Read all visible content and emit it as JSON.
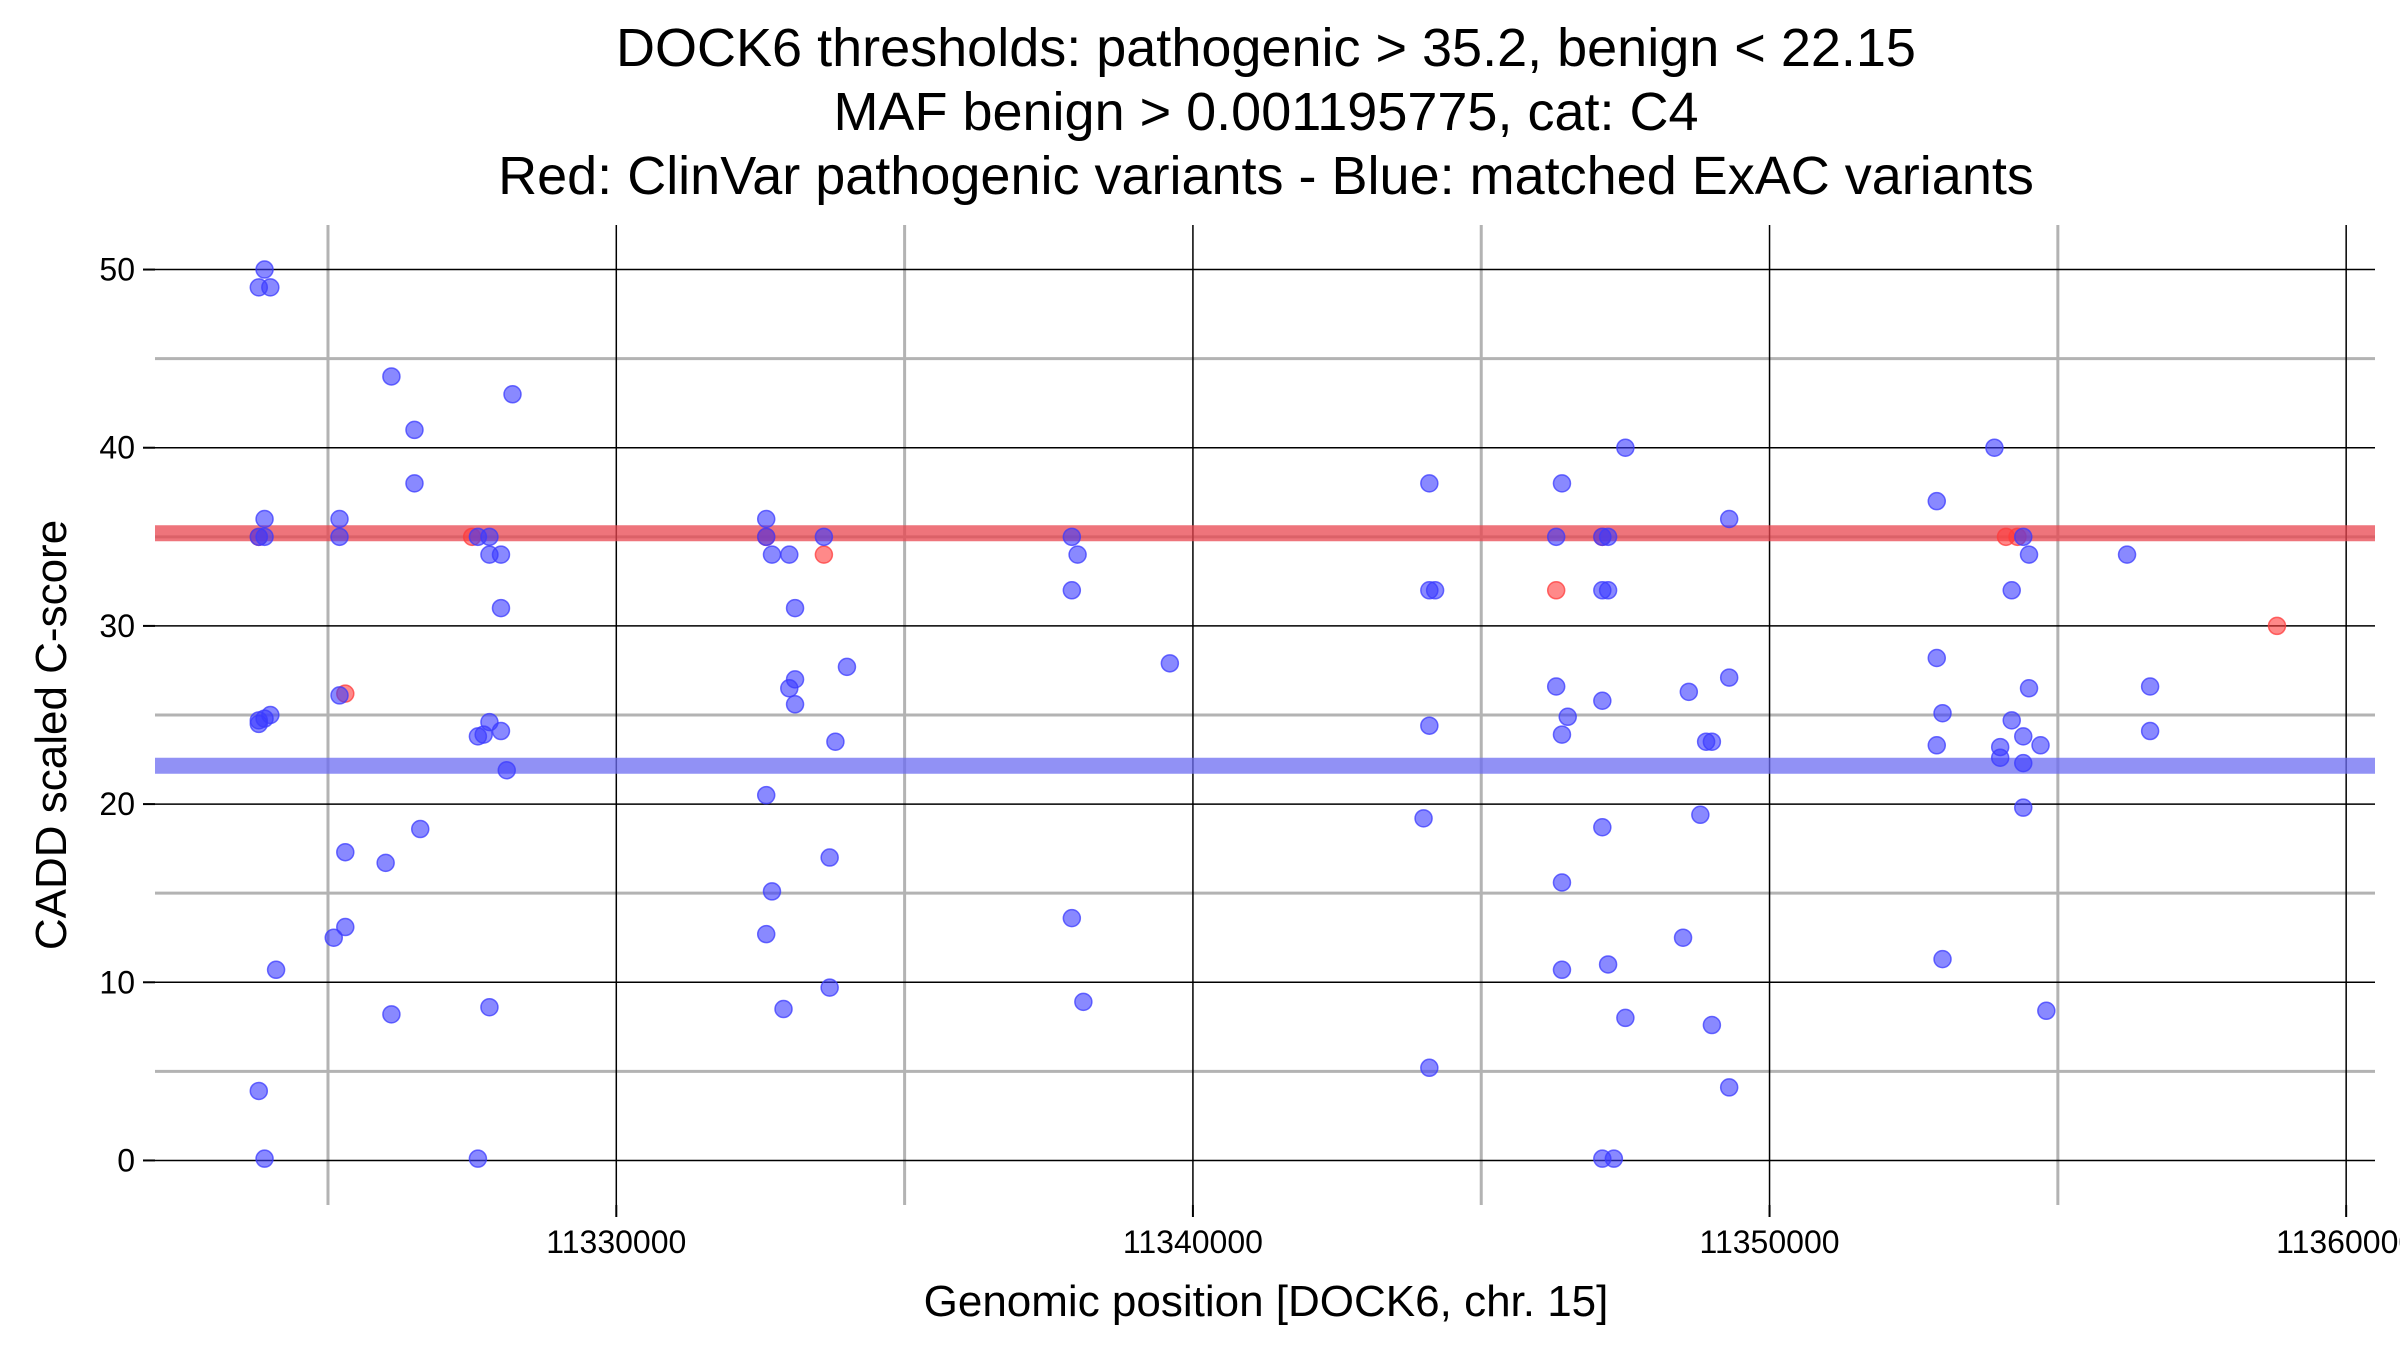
{
  "chart_data": {
    "type": "scatter",
    "title_lines": [
      "DOCK6 thresholds: pathogenic > 35.2, benign < 22.15",
      "MAF benign > 0.001195775, cat: C4",
      "Red: ClinVar pathogenic variants - Blue: matched ExAC variants"
    ],
    "xlabel": "Genomic position [DOCK6, chr. 15]",
    "ylabel": "CADD scaled C-score",
    "xlim": [
      11322000,
      11360500
    ],
    "ylim": [
      -2.5,
      52.5
    ],
    "x_ticks": [
      11330000,
      11340000,
      11350000,
      11360000
    ],
    "x_tick_labels": [
      "11330000",
      "11340000",
      "11350000",
      "11360000"
    ],
    "x_minor_grid": [
      11325000,
      11335000,
      11345000,
      11355000
    ],
    "y_ticks": [
      0,
      10,
      20,
      30,
      40,
      50
    ],
    "y_tick_labels": [
      "0",
      "10",
      "20",
      "30",
      "40",
      "50"
    ],
    "y_minor_grid": [
      5,
      15,
      25,
      35,
      45
    ],
    "grid": true,
    "threshold_lines": [
      {
        "name": "pathogenic",
        "value": 35.2,
        "color": "#e8454f"
      },
      {
        "name": "benign",
        "value": 22.15,
        "color": "#6c6cf2"
      }
    ],
    "colors": {
      "pathogenic": "#ff3b3b",
      "benign": "#3b3bff"
    },
    "series": [
      {
        "key": "clinvar",
        "color": "#ff3b3b",
        "points": [
          [
            11323800,
            35.0
          ],
          [
            11325300,
            26.2
          ],
          [
            11327500,
            35.0
          ],
          [
            11332600,
            35.0
          ],
          [
            11333600,
            34.0
          ],
          [
            11346300,
            32.0
          ],
          [
            11347100,
            35.0
          ],
          [
            11354100,
            35.0
          ],
          [
            11354300,
            35.0
          ],
          [
            11358800,
            30.0
          ]
        ]
      },
      {
        "key": "exac",
        "color": "#3b3bff",
        "points": [
          [
            11323800,
            49.0
          ],
          [
            11323900,
            50.0
          ],
          [
            11324000,
            49.0
          ],
          [
            11323900,
            36.0
          ],
          [
            11323800,
            35.0
          ],
          [
            11323900,
            35.0
          ],
          [
            11323800,
            24.7
          ],
          [
            11323800,
            24.5
          ],
          [
            11323900,
            24.8
          ],
          [
            11324000,
            25.0
          ],
          [
            11324100,
            10.7
          ],
          [
            11323800,
            3.9
          ],
          [
            11323900,
            0.1
          ],
          [
            11325200,
            36.0
          ],
          [
            11325200,
            35.0
          ],
          [
            11325200,
            26.1
          ],
          [
            11325300,
            17.3
          ],
          [
            11325300,
            13.1
          ],
          [
            11325100,
            12.5
          ],
          [
            11326100,
            44.0
          ],
          [
            11326500,
            41.0
          ],
          [
            11326500,
            38.0
          ],
          [
            11326000,
            16.7
          ],
          [
            11326600,
            18.6
          ],
          [
            11326100,
            8.2
          ],
          [
            11327600,
            35.0
          ],
          [
            11327800,
            35.0
          ],
          [
            11327800,
            34.0
          ],
          [
            11328000,
            34.0
          ],
          [
            11328000,
            31.0
          ],
          [
            11327800,
            24.6
          ],
          [
            11328000,
            24.1
          ],
          [
            11327600,
            23.8
          ],
          [
            11327700,
            23.9
          ],
          [
            11328100,
            21.9
          ],
          [
            11328200,
            43.0
          ],
          [
            11327800,
            8.6
          ],
          [
            11327600,
            0.1
          ],
          [
            11332600,
            36.0
          ],
          [
            11332600,
            35.0
          ],
          [
            11332700,
            34.0
          ],
          [
            11333000,
            34.0
          ],
          [
            11333100,
            31.0
          ],
          [
            11333000,
            26.5
          ],
          [
            11333100,
            27.0
          ],
          [
            11333100,
            25.6
          ],
          [
            11332600,
            20.5
          ],
          [
            11332700,
            15.1
          ],
          [
            11332600,
            12.7
          ],
          [
            11332900,
            8.5
          ],
          [
            11333600,
            35.0
          ],
          [
            11333800,
            23.5
          ],
          [
            11334000,
            27.7
          ],
          [
            11333700,
            17.0
          ],
          [
            11333700,
            9.7
          ],
          [
            11337900,
            35.0
          ],
          [
            11338000,
            34.0
          ],
          [
            11337900,
            32.0
          ],
          [
            11339600,
            27.9
          ],
          [
            11337900,
            13.6
          ],
          [
            11338100,
            8.9
          ],
          [
            11344100,
            38.0
          ],
          [
            11344100,
            32.0
          ],
          [
            11344200,
            32.0
          ],
          [
            11344100,
            24.4
          ],
          [
            11344000,
            19.2
          ],
          [
            11344100,
            5.2
          ],
          [
            11346400,
            38.0
          ],
          [
            11346300,
            35.0
          ],
          [
            11346300,
            26.6
          ],
          [
            11346500,
            24.9
          ],
          [
            11346400,
            23.9
          ],
          [
            11346400,
            15.6
          ],
          [
            11346400,
            10.7
          ],
          [
            11347100,
            35.0
          ],
          [
            11347200,
            35.0
          ],
          [
            11347100,
            32.0
          ],
          [
            11347200,
            32.0
          ],
          [
            11347100,
            25.8
          ],
          [
            11347100,
            18.7
          ],
          [
            11347200,
            11.0
          ],
          [
            11347100,
            0.1
          ],
          [
            11347300,
            0.1
          ],
          [
            11347500,
            40.0
          ],
          [
            11347500,
            8.0
          ],
          [
            11348600,
            26.3
          ],
          [
            11348500,
            12.5
          ],
          [
            11348800,
            19.4
          ],
          [
            11348900,
            23.5
          ],
          [
            11349000,
            23.5
          ],
          [
            11349000,
            7.6
          ],
          [
            11349300,
            36.0
          ],
          [
            11349300,
            27.1
          ],
          [
            11349300,
            4.1
          ],
          [
            11352900,
            37.0
          ],
          [
            11352900,
            28.2
          ],
          [
            11353000,
            25.1
          ],
          [
            11352900,
            23.3
          ],
          [
            11353000,
            11.3
          ],
          [
            11353900,
            40.0
          ],
          [
            11354400,
            35.0
          ],
          [
            11354500,
            34.0
          ],
          [
            11354200,
            32.0
          ],
          [
            11354500,
            26.5
          ],
          [
            11354200,
            24.7
          ],
          [
            11354000,
            23.2
          ],
          [
            11354400,
            23.8
          ],
          [
            11354000,
            22.6
          ],
          [
            11354400,
            22.3
          ],
          [
            11354400,
            19.8
          ],
          [
            11354700,
            23.3
          ],
          [
            11354800,
            8.4
          ],
          [
            11356200,
            34.0
          ],
          [
            11356600,
            26.6
          ],
          [
            11356600,
            24.1
          ]
        ]
      }
    ]
  }
}
